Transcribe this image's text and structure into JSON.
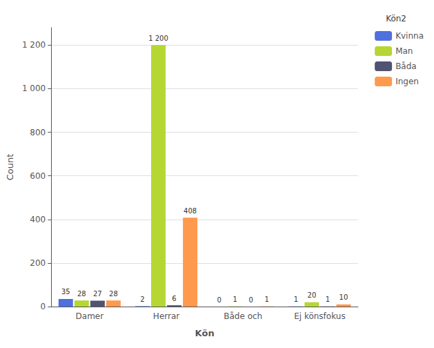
{
  "chart_data": {
    "type": "bar",
    "categories": [
      "Damer",
      "Herrar",
      "Både och",
      "Ej könsfokus"
    ],
    "series": [
      {
        "name": "Kvinna",
        "values": [
          35,
          2,
          0,
          1
        ]
      },
      {
        "name": "Man",
        "values": [
          28,
          1200,
          1,
          20
        ],
        "value_labels": [
          "28",
          "1 200",
          "1",
          "20"
        ]
      },
      {
        "name": "Båda",
        "values": [
          27,
          6,
          0,
          1
        ]
      },
      {
        "name": "Ingen",
        "values": [
          28,
          408,
          1,
          10
        ]
      }
    ],
    "x_label": "Kön",
    "y_label": "Count",
    "legend_title": "Kön2",
    "legend": "upper right",
    "ylim": [
      0,
      1280
    ],
    "yticks": [
      0,
      200,
      400,
      600,
      800,
      {
        "value": 1000,
        "label": "1 000"
      },
      {
        "value": 1200,
        "label": "1 200"
      }
    ],
    "grid": true,
    "data_labels": true
  }
}
